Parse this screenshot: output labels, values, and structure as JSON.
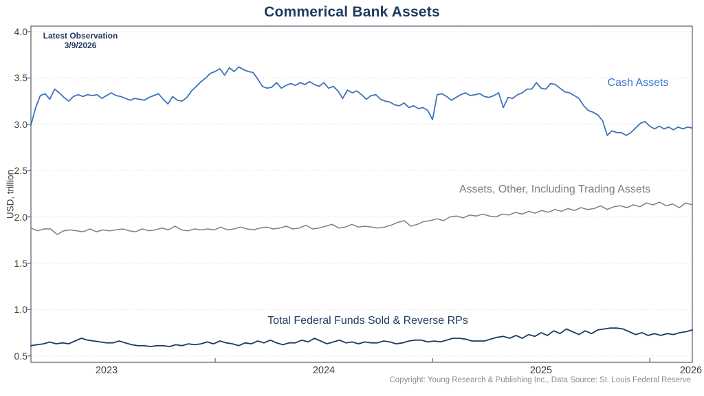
{
  "chart_data": {
    "type": "line",
    "title": "Commerical Bank Assets",
    "ylabel": "USD, trillion",
    "xlabel": "",
    "ylim": [
      0.43,
      4.06
    ],
    "xlim": [
      2023.152,
      2026.196
    ],
    "yticks": [
      4.0,
      3.5,
      3.0,
      2.5,
      2.0,
      1.5,
      1.0,
      0.5
    ],
    "ytick_labels": [
      "4.0",
      "3.5",
      "3.0",
      "2.5",
      "2.0",
      "1.5",
      "1.0",
      "0.5"
    ],
    "year_boundary_ticks": [
      2024,
      2025,
      2026
    ],
    "xtick_labels": [
      {
        "text": "2023",
        "t": 2023.5
      },
      {
        "text": "2024",
        "t": 2024.5
      },
      {
        "text": "2025",
        "t": 2025.5
      },
      {
        "text": "2026",
        "t": 2026.19
      }
    ],
    "grid": {
      "horizontal": true,
      "style": "dotted",
      "color": "#d6d6d6"
    },
    "axis": {
      "spine_color": "#5d6b7e",
      "tick_text_color": "#3f3f3f"
    },
    "legend": "none (inline series labels)",
    "annotation": {
      "line1": "Latest Observation",
      "line2": "3/9/2026",
      "color": "#1f3a60"
    },
    "series": [
      {
        "name": "Cash Assets",
        "color": "#3f72b8",
        "label_color": "#3478cc",
        "x_start": 2023.152,
        "x_end": 2026.196,
        "unit": "USD trillion",
        "values": [
          2.99,
          3.18,
          3.31,
          3.33,
          3.27,
          3.38,
          3.34,
          3.29,
          3.25,
          3.3,
          3.32,
          3.3,
          3.32,
          3.31,
          3.32,
          3.28,
          3.31,
          3.34,
          3.31,
          3.3,
          3.28,
          3.26,
          3.28,
          3.27,
          3.26,
          3.29,
          3.31,
          3.33,
          3.27,
          3.22,
          3.3,
          3.26,
          3.25,
          3.29,
          3.36,
          3.41,
          3.46,
          3.5,
          3.55,
          3.57,
          3.6,
          3.53,
          3.61,
          3.57,
          3.62,
          3.59,
          3.57,
          3.56,
          3.49,
          3.41,
          3.39,
          3.4,
          3.45,
          3.39,
          3.42,
          3.44,
          3.42,
          3.45,
          3.43,
          3.46,
          3.43,
          3.41,
          3.45,
          3.39,
          3.41,
          3.36,
          3.28,
          3.37,
          3.34,
          3.36,
          3.32,
          3.27,
          3.31,
          3.32,
          3.27,
          3.25,
          3.24,
          3.21,
          3.2,
          3.23,
          3.18,
          3.2,
          3.17,
          3.18,
          3.15,
          3.05,
          3.32,
          3.33,
          3.3,
          3.26,
          3.29,
          3.32,
          3.34,
          3.31,
          3.32,
          3.33,
          3.3,
          3.29,
          3.31,
          3.34,
          3.18,
          3.29,
          3.28,
          3.32,
          3.34,
          3.38,
          3.38,
          3.45,
          3.39,
          3.38,
          3.44,
          3.43,
          3.39,
          3.35,
          3.34,
          3.31,
          3.28,
          3.2,
          3.15,
          3.13,
          3.1,
          3.04,
          2.88,
          2.93,
          2.91,
          2.91,
          2.88,
          2.91,
          2.96,
          3.01,
          3.03,
          2.98,
          2.95,
          2.98,
          2.95,
          2.97,
          2.94,
          2.97,
          2.95,
          2.97,
          2.96
        ]
      },
      {
        "name": "Assets, Other, Including Trading Assets",
        "color": "#7f7f7f",
        "label_color": "#7f7f7f",
        "x_start": 2023.152,
        "x_end": 2026.196,
        "unit": "USD trillion",
        "values": [
          1.88,
          1.85,
          1.87,
          1.87,
          1.81,
          1.85,
          1.86,
          1.85,
          1.84,
          1.87,
          1.84,
          1.86,
          1.85,
          1.86,
          1.87,
          1.85,
          1.84,
          1.87,
          1.85,
          1.86,
          1.88,
          1.86,
          1.9,
          1.86,
          1.85,
          1.87,
          1.86,
          1.87,
          1.86,
          1.89,
          1.86,
          1.87,
          1.89,
          1.87,
          1.86,
          1.88,
          1.89,
          1.87,
          1.88,
          1.9,
          1.87,
          1.88,
          1.91,
          1.87,
          1.88,
          1.9,
          1.92,
          1.88,
          1.89,
          1.92,
          1.89,
          1.9,
          1.89,
          1.88,
          1.89,
          1.91,
          1.94,
          1.96,
          1.9,
          1.92,
          1.95,
          1.96,
          1.98,
          1.96,
          2.0,
          2.01,
          1.99,
          2.02,
          2.01,
          2.03,
          2.01,
          2.0,
          2.03,
          2.02,
          2.05,
          2.03,
          2.06,
          2.04,
          2.07,
          2.05,
          2.08,
          2.06,
          2.09,
          2.07,
          2.1,
          2.08,
          2.09,
          2.12,
          2.08,
          2.11,
          2.12,
          2.1,
          2.13,
          2.11,
          2.15,
          2.13,
          2.16,
          2.12,
          2.14,
          2.1,
          2.15,
          2.13
        ]
      },
      {
        "name": "Total Federal Funds Sold & Reverse RPs",
        "color": "#1f3a60",
        "label_color": "#1f3a60",
        "x_start": 2023.152,
        "x_end": 2026.196,
        "unit": "USD trillion",
        "values": [
          0.61,
          0.62,
          0.63,
          0.65,
          0.63,
          0.64,
          0.63,
          0.66,
          0.69,
          0.67,
          0.66,
          0.65,
          0.64,
          0.64,
          0.66,
          0.64,
          0.62,
          0.61,
          0.61,
          0.6,
          0.61,
          0.61,
          0.6,
          0.62,
          0.61,
          0.63,
          0.62,
          0.63,
          0.65,
          0.63,
          0.66,
          0.64,
          0.63,
          0.61,
          0.64,
          0.63,
          0.66,
          0.64,
          0.67,
          0.64,
          0.62,
          0.64,
          0.64,
          0.67,
          0.65,
          0.69,
          0.66,
          0.63,
          0.65,
          0.67,
          0.64,
          0.65,
          0.63,
          0.65,
          0.64,
          0.64,
          0.66,
          0.65,
          0.63,
          0.64,
          0.66,
          0.67,
          0.67,
          0.65,
          0.66,
          0.65,
          0.67,
          0.69,
          0.69,
          0.68,
          0.66,
          0.66,
          0.66,
          0.68,
          0.7,
          0.71,
          0.69,
          0.72,
          0.69,
          0.73,
          0.71,
          0.75,
          0.72,
          0.77,
          0.74,
          0.79,
          0.76,
          0.73,
          0.77,
          0.74,
          0.78,
          0.79,
          0.8,
          0.8,
          0.79,
          0.76,
          0.73,
          0.75,
          0.72,
          0.74,
          0.72,
          0.74,
          0.73,
          0.75,
          0.76,
          0.78
        ]
      }
    ]
  },
  "footer": "Copyright: Young Research & Publishing Inc., Data Source: St. Louis Federal Reserve",
  "colors": {
    "title": "#1f3a60",
    "annotation": "#1f3a60",
    "footer": "#8c8c8c",
    "background": "#ffffff"
  }
}
